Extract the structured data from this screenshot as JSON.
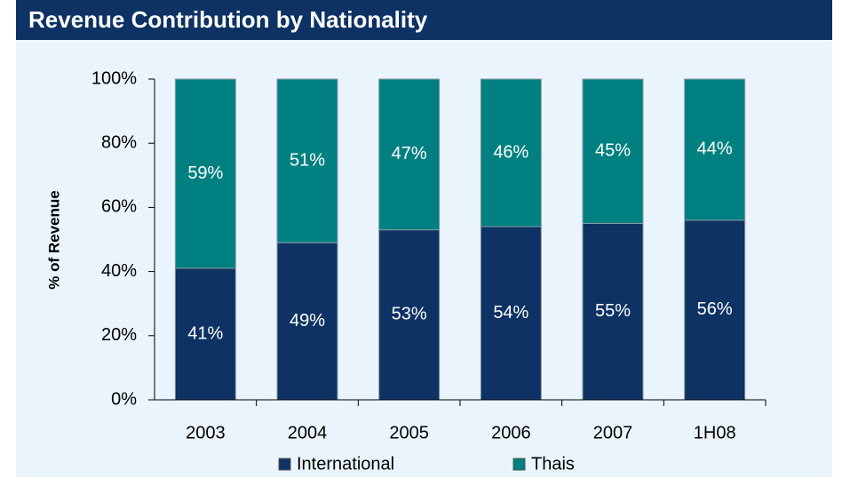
{
  "chart_data": {
    "type": "stacked_bar",
    "title": "Revenue Contribution by Nationality",
    "ylabel": "% of Revenue",
    "categories": [
      "2003",
      "2004",
      "2005",
      "2006",
      "2007",
      "1H08"
    ],
    "series": [
      {
        "name": "International",
        "color": "#0d3263",
        "values": [
          41,
          49,
          53,
          54,
          55,
          56
        ],
        "value_labels": [
          "41%",
          "49%",
          "53%",
          "54%",
          "55%",
          "56%"
        ]
      },
      {
        "name": "Thais",
        "color": "#008080",
        "values": [
          59,
          51,
          47,
          46,
          45,
          44
        ],
        "value_labels": [
          "59%",
          "51%",
          "47%",
          "46%",
          "45%",
          "44%"
        ]
      }
    ],
    "ylim": [
      0,
      100
    ],
    "yticks": [
      {
        "value": 0,
        "label": "0%"
      },
      {
        "value": 20,
        "label": "20%"
      },
      {
        "value": 40,
        "label": "40%"
      },
      {
        "value": 60,
        "label": "60%"
      },
      {
        "value": 80,
        "label": "80%"
      },
      {
        "value": 100,
        "label": "100%"
      }
    ]
  }
}
